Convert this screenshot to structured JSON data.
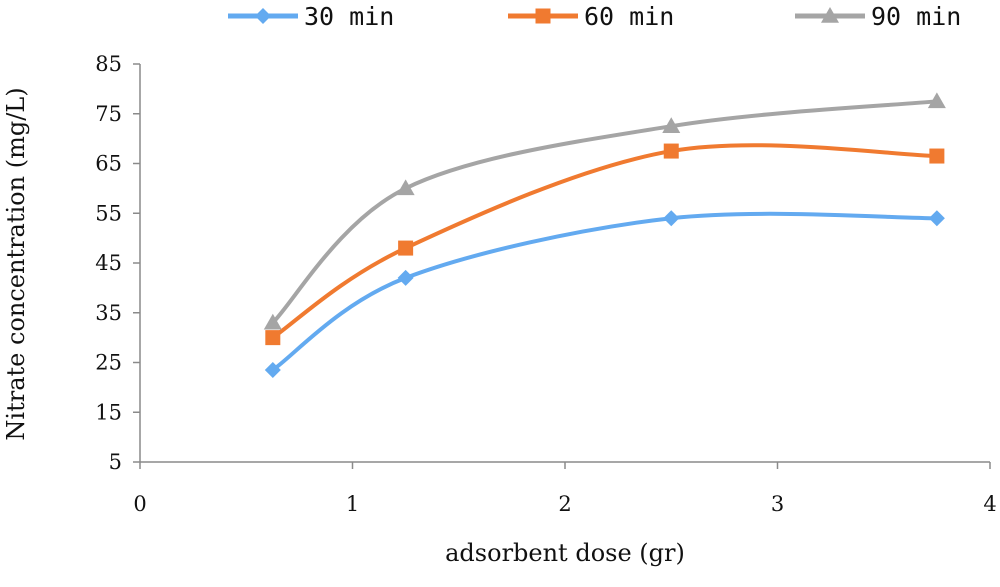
{
  "chart_data": {
    "type": "line",
    "title": "",
    "xlabel": "adsorbent dose (gr)",
    "ylabel": "Nitrate concentration (mg/L)",
    "xlim": [
      0,
      4
    ],
    "ylim": [
      5,
      85
    ],
    "x_ticks": [
      "0",
      "1",
      "2",
      "3",
      "4"
    ],
    "y_ticks": [
      "5",
      "15",
      "25",
      "35",
      "45",
      "55",
      "65",
      "75",
      "85"
    ],
    "grid": false,
    "smooth": true,
    "legend_position": "top",
    "x": [
      0.625,
      1.25,
      2.5,
      3.75
    ],
    "series": [
      {
        "name": "30 min",
        "color": "#63aaf0",
        "marker": "diamond",
        "values": [
          23.5,
          42,
          54,
          54
        ]
      },
      {
        "name": "60 min",
        "color": "#f07a30",
        "marker": "square",
        "values": [
          30,
          48,
          67.5,
          66.5
        ]
      },
      {
        "name": "90 min",
        "color": "#a5a5a5",
        "marker": "triangle",
        "values": [
          33,
          60,
          72.5,
          77.5
        ]
      }
    ]
  }
}
